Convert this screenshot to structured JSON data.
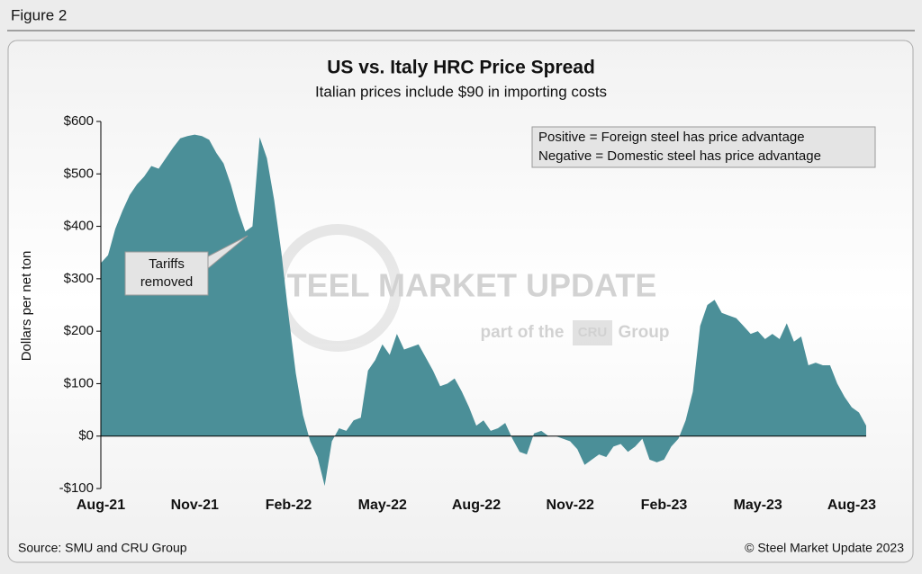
{
  "figure_label": "Figure 2",
  "chart_data": {
    "type": "area",
    "title": "US vs. Italy HRC Price Spread",
    "subtitle": "Italian prices include $90 in importing costs",
    "y_label": "Dollars per net ton",
    "legend_notes": [
      "Positive = Foreign steel has price advantage",
      "Negative = Domestic steel has price advantage"
    ],
    "annotation": [
      "Tariffs",
      "removed"
    ],
    "watermark": [
      "STEEL MARKET UPDATE",
      "part of the",
      "CRU",
      "Group"
    ],
    "color": "#4b8f98",
    "categories": [
      "Aug-21",
      null,
      null,
      null,
      null,
      null,
      null,
      null,
      null,
      null,
      null,
      null,
      null,
      "Nov-21",
      null,
      null,
      null,
      null,
      null,
      null,
      null,
      null,
      null,
      null,
      null,
      null,
      "Feb-22",
      null,
      null,
      null,
      null,
      null,
      null,
      null,
      null,
      null,
      null,
      null,
      null,
      "May-22",
      null,
      null,
      null,
      null,
      null,
      null,
      null,
      null,
      null,
      null,
      null,
      null,
      "Aug-22",
      null,
      null,
      null,
      null,
      null,
      null,
      null,
      null,
      null,
      null,
      null,
      null,
      "Nov-22",
      null,
      null,
      null,
      null,
      null,
      null,
      null,
      null,
      null,
      null,
      null,
      null,
      "Feb-23",
      null,
      null,
      null,
      null,
      null,
      null,
      null,
      null,
      null,
      null,
      null,
      null,
      "May-23",
      null,
      null,
      null,
      null,
      null,
      null,
      null,
      null,
      null,
      null,
      null,
      null,
      "Aug-23",
      null,
      null
    ],
    "values": [
      330,
      345,
      395,
      430,
      460,
      480,
      495,
      515,
      510,
      530,
      550,
      568,
      572,
      575,
      572,
      565,
      540,
      520,
      480,
      430,
      390,
      400,
      570,
      530,
      450,
      350,
      230,
      120,
      40,
      -10,
      -40,
      -95,
      -10,
      15,
      10,
      30,
      35,
      125,
      145,
      175,
      155,
      195,
      165,
      170,
      175,
      150,
      125,
      95,
      100,
      110,
      85,
      55,
      20,
      30,
      10,
      15,
      25,
      -5,
      -30,
      -35,
      5,
      10,
      0,
      0,
      -5,
      -10,
      -25,
      -55,
      -45,
      -35,
      -40,
      -20,
      -15,
      -30,
      -20,
      -5,
      -45,
      -50,
      -45,
      -20,
      -5,
      30,
      85,
      210,
      250,
      260,
      235,
      230,
      225,
      210,
      195,
      200,
      185,
      195,
      185,
      215,
      180,
      190,
      135,
      140,
      135,
      135,
      100,
      75,
      55,
      45,
      20
    ],
    "ylim": [
      -100,
      600
    ],
    "yticks": [
      {
        "value": -100,
        "label": "-$100"
      },
      {
        "value": 0,
        "label": "$0"
      },
      {
        "value": 100,
        "label": "$100"
      },
      {
        "value": 200,
        "label": "$200"
      },
      {
        "value": 300,
        "label": "$300"
      },
      {
        "value": 400,
        "label": "$400"
      },
      {
        "value": 500,
        "label": "$500"
      },
      {
        "value": 600,
        "label": "$600"
      }
    ],
    "source": "Source: SMU and CRU Group",
    "copyright": "© Steel Market Update 2023"
  }
}
